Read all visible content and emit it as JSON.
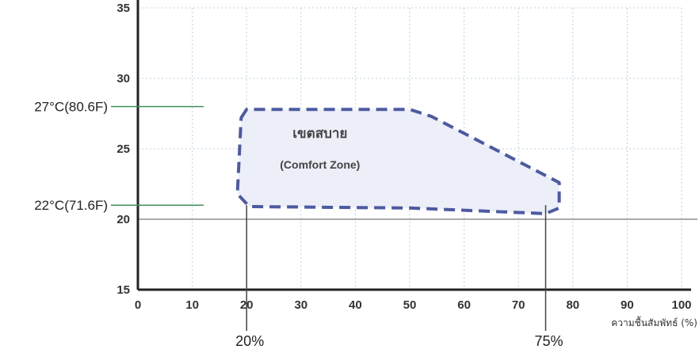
{
  "chart_data": {
    "type": "area",
    "title": "",
    "xlabel": "ความชื้นสัมพัทธ์ (%)",
    "ylabel": "",
    "xlim": [
      0,
      100
    ],
    "ylim": [
      15,
      35
    ],
    "x_ticks": [
      "0",
      "10",
      "20",
      "30",
      "40",
      "50",
      "60",
      "70",
      "80",
      "90",
      "100"
    ],
    "y_ticks": [
      "15",
      "20",
      "25",
      "30",
      "35"
    ],
    "grid": true,
    "zone": {
      "label_th": "เขตสบาย",
      "label_en": "(Comfort Zone)",
      "boundary": [
        {
          "x": 19,
          "y": 27.2
        },
        {
          "x": 20,
          "y": 27.8
        },
        {
          "x": 50,
          "y": 27.8
        },
        {
          "x": 54,
          "y": 27.3
        },
        {
          "x": 77.5,
          "y": 22.6
        },
        {
          "x": 77.5,
          "y": 20.8
        },
        {
          "x": 75,
          "y": 20.4
        },
        {
          "x": 50,
          "y": 20.8
        },
        {
          "x": 20.5,
          "y": 20.9
        },
        {
          "x": 18.3,
          "y": 21.8
        }
      ]
    },
    "temperature_markers": [
      {
        "label": "27°C(80.6F)",
        "y": 28
      },
      {
        "label": "22°C(71.6F)",
        "y": 21
      }
    ],
    "humidity_markers": [
      {
        "label": "20%",
        "x": 20
      },
      {
        "label": "75%",
        "x": 75
      }
    ],
    "reference_lines": [
      {
        "axis": "y",
        "value": 20
      }
    ]
  },
  "colors": {
    "zone_fill": "#eceef8",
    "zone_stroke": "#4d5aa0",
    "axis": "#222222",
    "marker_line": "#3f8f5a",
    "grid": "#bcd2dc"
  }
}
